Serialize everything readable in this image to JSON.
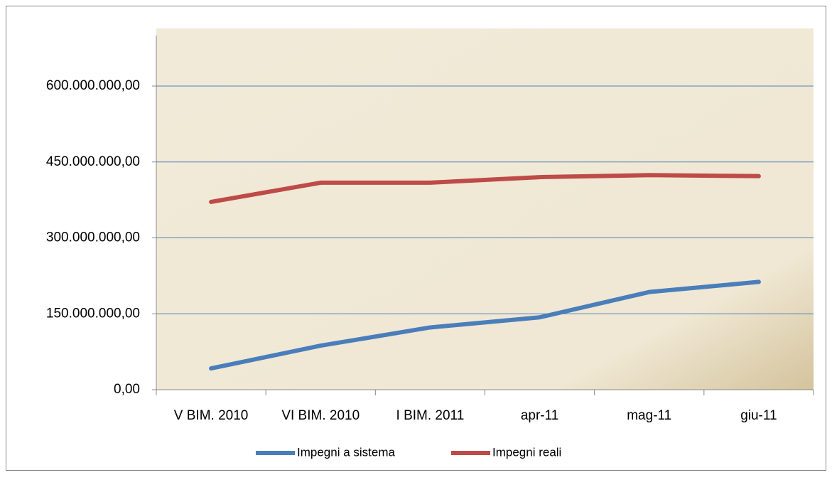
{
  "chart_data": {
    "type": "line",
    "categories": [
      "V  BIM. 2010",
      "VI  BIM. 2010",
      "I BIM. 2011",
      "apr-11",
      "mag-11",
      "giu-11"
    ],
    "series": [
      {
        "name": "Impegni a sistema",
        "color": "#4a7ebb",
        "values": [
          42000000,
          87000000,
          123000000,
          143000000,
          193000000,
          213000000
        ]
      },
      {
        "name": "Impegni reali",
        "color": "#be4b48",
        "values": [
          371000000,
          409000000,
          409000000,
          420000000,
          424000000,
          422000000
        ]
      }
    ],
    "ylim": [
      0,
      700000000
    ],
    "yticks": [
      {
        "value": 0,
        "label": "0,00"
      },
      {
        "value": 150000000,
        "label": "150.000.000,00"
      },
      {
        "value": 300000000,
        "label": "300.000.000,00"
      },
      {
        "value": 450000000,
        "label": "450.000.000,00"
      },
      {
        "value": 600000000,
        "label": "600.000.000,00"
      }
    ],
    "grid": true,
    "legend": "bottom"
  }
}
